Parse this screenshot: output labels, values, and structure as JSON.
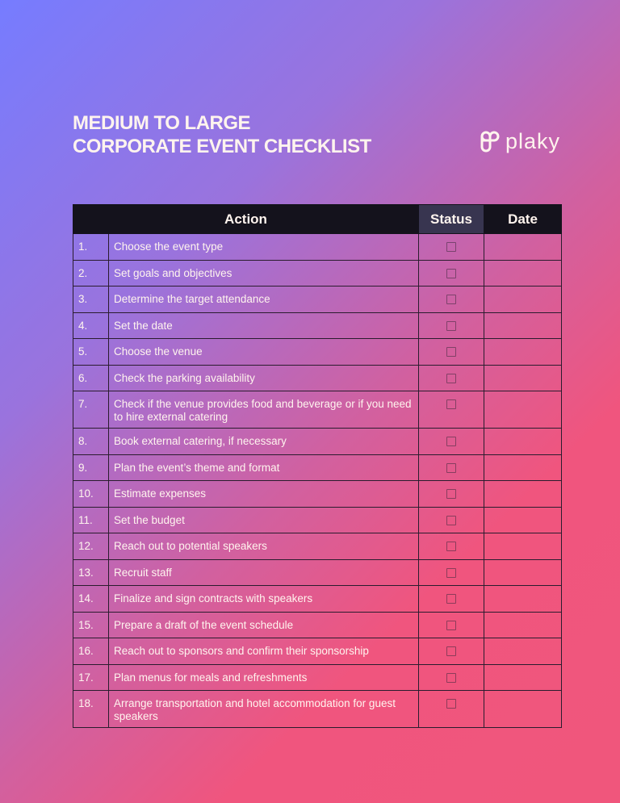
{
  "title": {
    "line1": "MEDIUM TO LARGE",
    "line2": "CORPORATE EVENT CHECKLIST"
  },
  "logo": {
    "text": "plaky"
  },
  "table": {
    "headers": {
      "number": "",
      "action": "Action",
      "status": "Status",
      "date": "Date"
    },
    "rows": [
      {
        "num": "1.",
        "action": "Choose the event type",
        "checked": false,
        "date": ""
      },
      {
        "num": "2.",
        "action": "Set goals and objectives",
        "checked": false,
        "date": ""
      },
      {
        "num": "3.",
        "action": "Determine the target attendance",
        "checked": false,
        "date": ""
      },
      {
        "num": "4.",
        "action": "Set the date",
        "checked": false,
        "date": ""
      },
      {
        "num": "5.",
        "action": "Choose the venue",
        "checked": false,
        "date": ""
      },
      {
        "num": "6.",
        "action": "Check the parking availability",
        "checked": false,
        "date": ""
      },
      {
        "num": "7.",
        "action": "Check if the venue provides food and beverage or if you need to hire external catering",
        "checked": false,
        "date": ""
      },
      {
        "num": "8.",
        "action": "Book external catering, if necessary",
        "checked": false,
        "date": ""
      },
      {
        "num": "9.",
        "action": "Plan the event’s theme and format",
        "checked": false,
        "date": ""
      },
      {
        "num": "10.",
        "action": "Estimate expenses",
        "checked": false,
        "date": ""
      },
      {
        "num": "11.",
        "action": "Set the budget",
        "checked": false,
        "date": ""
      },
      {
        "num": "12.",
        "action": "Reach out to potential speakers",
        "checked": false,
        "date": ""
      },
      {
        "num": "13.",
        "action": "Recruit staff",
        "checked": false,
        "date": ""
      },
      {
        "num": "14.",
        "action": "Finalize and sign contracts with speakers",
        "checked": false,
        "date": ""
      },
      {
        "num": "15.",
        "action": "Prepare a draft of the event schedule",
        "checked": false,
        "date": ""
      },
      {
        "num": "16.",
        "action": "Reach out to sponsors and confirm their sponsorship",
        "checked": false,
        "date": ""
      },
      {
        "num": "17.",
        "action": "Plan menus for meals and refreshments",
        "checked": false,
        "date": ""
      },
      {
        "num": "18.",
        "action": "Arrange transportation and hotel accommodation for guest speakers",
        "checked": false,
        "date": ""
      }
    ]
  }
}
